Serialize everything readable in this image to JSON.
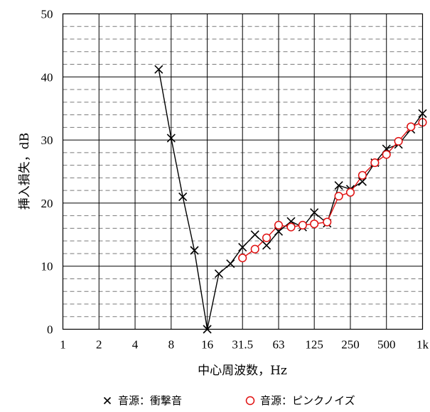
{
  "chart_data": {
    "type": "line",
    "title": "",
    "xlabel": "中心周波数，Hz",
    "ylabel": "挿入損失，dB",
    "x_scale": "log2",
    "xlim": [
      1,
      1000
    ],
    "ylim": [
      0,
      50
    ],
    "x_ticks": [
      {
        "value": 1,
        "label": "1"
      },
      {
        "value": 2,
        "label": "2"
      },
      {
        "value": 4,
        "label": "4"
      },
      {
        "value": 8,
        "label": "8"
      },
      {
        "value": 16,
        "label": "16"
      },
      {
        "value": 31.5,
        "label": "31.5"
      },
      {
        "value": 63,
        "label": "63"
      },
      {
        "value": 125,
        "label": "125"
      },
      {
        "value": 250,
        "label": "250"
      },
      {
        "value": 500,
        "label": "500"
      },
      {
        "value": 1000,
        "label": "1k"
      }
    ],
    "y_ticks": [
      0,
      10,
      20,
      30,
      40,
      50
    ],
    "grid": {
      "major": "solid",
      "minor_y": "dashed",
      "minor_y_step": 2
    },
    "legend_position": "bottom",
    "series": [
      {
        "name": "音源：衝撃音",
        "marker": "x",
        "color": "#000000",
        "x": [
          6.3,
          8,
          10,
          12.5,
          16,
          20,
          25,
          31.5,
          40,
          50,
          63,
          80,
          100,
          125,
          160,
          200,
          250,
          315,
          400,
          500,
          630,
          800,
          1000
        ],
        "y": [
          41.2,
          30.3,
          21,
          12.5,
          0,
          8.8,
          10.4,
          13,
          15,
          13.3,
          15.5,
          17.1,
          16.2,
          18.5,
          16.8,
          22.8,
          22.2,
          23.4,
          26.4,
          28.6,
          29.3,
          31.7,
          34.2
        ]
      },
      {
        "name": "音源：ピンクノイズ",
        "marker": "circle-open",
        "color": "#e01010",
        "x": [
          31.5,
          40,
          50,
          63,
          80,
          100,
          125,
          160,
          200,
          250,
          315,
          400,
          500,
          630,
          800,
          1000
        ],
        "y": [
          11.3,
          12.7,
          14.5,
          16.5,
          16.2,
          16.5,
          16.7,
          17,
          21.1,
          21.7,
          24.4,
          26.4,
          27.7,
          29.8,
          32.1,
          32.8
        ]
      }
    ]
  }
}
